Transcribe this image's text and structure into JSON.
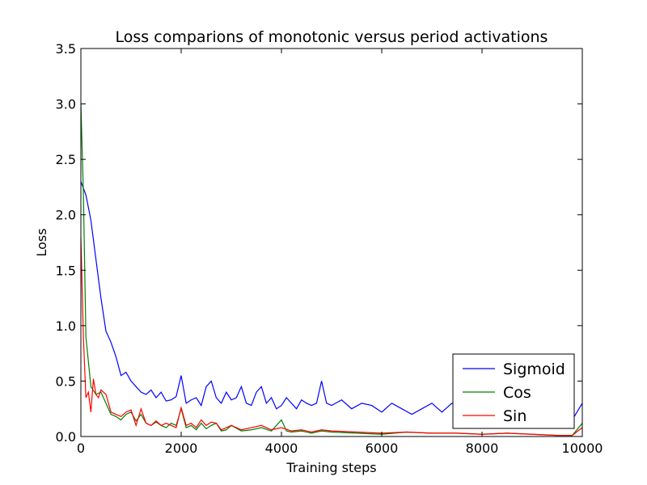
{
  "chart_data": {
    "type": "line",
    "title": "Loss comparions of monotonic versus period activations",
    "xlabel": "Training steps",
    "ylabel": "Loss",
    "xlim": [
      0,
      10000
    ],
    "ylim": [
      0,
      3.5
    ],
    "xticks": [
      0,
      2000,
      4000,
      6000,
      8000,
      10000
    ],
    "xtick_labels": [
      "0",
      "2000",
      "4000",
      "6000",
      "8000",
      "10000"
    ],
    "yticks": [
      0,
      0.5,
      1.0,
      1.5,
      2.0,
      2.5,
      3.0,
      3.5
    ],
    "ytick_labels": [
      "0.0",
      "0.5",
      "1.0",
      "1.5",
      "2.0",
      "2.5",
      "3.0",
      "3.5"
    ],
    "grid": false,
    "legend_position": "lower-right",
    "series": [
      {
        "name": "Sigmoid",
        "color": "#0000ff",
        "x": [
          0,
          100,
          200,
          300,
          400,
          500,
          600,
          700,
          800,
          900,
          1000,
          1100,
          1200,
          1300,
          1400,
          1500,
          1600,
          1700,
          1800,
          1900,
          2000,
          2100,
          2200,
          2300,
          2400,
          2500,
          2600,
          2700,
          2800,
          2900,
          3000,
          3100,
          3200,
          3300,
          3400,
          3500,
          3600,
          3700,
          3800,
          3900,
          4000,
          4100,
          4200,
          4300,
          4400,
          4500,
          4600,
          4700,
          4800,
          4900,
          5000,
          5200,
          5400,
          5600,
          5800,
          6000,
          6200,
          6400,
          6600,
          6800,
          7000,
          7200,
          7400,
          7600,
          7800,
          8000,
          8200,
          8400,
          8600,
          8800,
          9000,
          9200,
          9400,
          9600,
          9800,
          10000
        ],
        "y": [
          2.3,
          2.18,
          1.95,
          1.6,
          1.25,
          0.95,
          0.85,
          0.72,
          0.55,
          0.58,
          0.5,
          0.45,
          0.4,
          0.38,
          0.42,
          0.35,
          0.4,
          0.32,
          0.33,
          0.36,
          0.55,
          0.3,
          0.33,
          0.35,
          0.28,
          0.45,
          0.5,
          0.35,
          0.3,
          0.4,
          0.33,
          0.35,
          0.45,
          0.3,
          0.28,
          0.4,
          0.45,
          0.3,
          0.35,
          0.25,
          0.28,
          0.35,
          0.3,
          0.25,
          0.33,
          0.3,
          0.28,
          0.3,
          0.5,
          0.3,
          0.28,
          0.33,
          0.25,
          0.3,
          0.28,
          0.22,
          0.3,
          0.25,
          0.2,
          0.25,
          0.3,
          0.22,
          0.3,
          0.25,
          0.2,
          0.18,
          0.22,
          0.15,
          0.2,
          0.18,
          0.15,
          0.2,
          0.15,
          0.1,
          0.15,
          0.3
        ]
      },
      {
        "name": "Cos",
        "color": "#008000",
        "x": [
          0,
          50,
          100,
          200,
          300,
          400,
          500,
          600,
          700,
          800,
          900,
          1000,
          1100,
          1200,
          1300,
          1400,
          1500,
          1600,
          1700,
          1800,
          1900,
          2000,
          2100,
          2200,
          2300,
          2400,
          2500,
          2600,
          2700,
          2800,
          2900,
          3000,
          3200,
          3400,
          3600,
          3800,
          4000,
          4100,
          4200,
          4400,
          4600,
          4800,
          5000,
          5500,
          6000,
          6500,
          7000,
          7500,
          8000,
          8500,
          9000,
          9500,
          9800,
          10000
        ],
        "y": [
          3.0,
          2.2,
          0.9,
          0.45,
          0.38,
          0.4,
          0.3,
          0.2,
          0.18,
          0.15,
          0.2,
          0.22,
          0.14,
          0.2,
          0.12,
          0.1,
          0.13,
          0.1,
          0.08,
          0.12,
          0.1,
          0.25,
          0.08,
          0.1,
          0.06,
          0.12,
          0.07,
          0.1,
          0.12,
          0.05,
          0.06,
          0.1,
          0.05,
          0.06,
          0.08,
          0.05,
          0.15,
          0.05,
          0.04,
          0.05,
          0.03,
          0.05,
          0.04,
          0.03,
          0.02,
          0.04,
          0.03,
          0.03,
          0.02,
          0.03,
          0.02,
          0.01,
          0.01,
          0.12
        ]
      },
      {
        "name": "Sin",
        "color": "#ff0000",
        "x": [
          0,
          50,
          100,
          150,
          200,
          250,
          300,
          350,
          400,
          500,
          600,
          700,
          800,
          900,
          1000,
          1100,
          1200,
          1300,
          1400,
          1500,
          1600,
          1700,
          1800,
          1900,
          2000,
          2100,
          2200,
          2300,
          2400,
          2500,
          2600,
          2700,
          2800,
          2900,
          3000,
          3200,
          3400,
          3600,
          3800,
          4000,
          4200,
          4400,
          4600,
          4800,
          5000,
          5500,
          6000,
          6500,
          7000,
          7500,
          8000,
          8500,
          9000,
          9500,
          9800,
          10000
        ],
        "y": [
          1.8,
          0.9,
          0.35,
          0.4,
          0.22,
          0.52,
          0.38,
          0.35,
          0.42,
          0.38,
          0.22,
          0.2,
          0.18,
          0.22,
          0.24,
          0.1,
          0.25,
          0.12,
          0.1,
          0.14,
          0.1,
          0.12,
          0.1,
          0.08,
          0.26,
          0.1,
          0.12,
          0.08,
          0.15,
          0.1,
          0.13,
          0.12,
          0.06,
          0.08,
          0.1,
          0.06,
          0.08,
          0.1,
          0.06,
          0.08,
          0.05,
          0.06,
          0.04,
          0.06,
          0.05,
          0.04,
          0.03,
          0.04,
          0.03,
          0.03,
          0.02,
          0.03,
          0.02,
          0.01,
          0.01,
          0.08
        ]
      }
    ]
  }
}
